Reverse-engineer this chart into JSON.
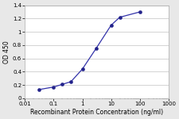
{
  "x": [
    0.03,
    0.1,
    0.2,
    0.4,
    1,
    3,
    10,
    20,
    100
  ],
  "y": [
    0.13,
    0.17,
    0.21,
    0.25,
    0.44,
    0.75,
    1.1,
    1.22,
    1.3
  ],
  "line_color": "#3333aa",
  "marker_color": "#22228a",
  "marker_size": 3.0,
  "ylabel": "OD 450",
  "xlabel": "Recombinant Protein Concentration (ng/ml)",
  "ylim": [
    0,
    1.4
  ],
  "xlim": [
    0.01,
    1000
  ],
  "yticks": [
    0,
    0.2,
    0.4,
    0.6,
    0.8,
    1.0,
    1.2,
    1.4
  ],
  "xticks": [
    0.01,
    0.1,
    1,
    10,
    100,
    1000
  ],
  "xtick_labels": [
    "0.01",
    "0.1",
    "1",
    "10",
    "100",
    "1000"
  ],
  "ytick_labels": [
    "0",
    "0.2",
    "0.4",
    "0.6",
    "0.8",
    "1",
    "1.2",
    "1.4"
  ],
  "xlabel_fontsize": 5.5,
  "ylabel_fontsize": 5.5,
  "tick_fontsize": 5.0,
  "plot_bg_color": "#ffffff",
  "fig_bg_color": "#e8e8e8",
  "grid_color": "#cccccc",
  "linewidth": 0.9
}
